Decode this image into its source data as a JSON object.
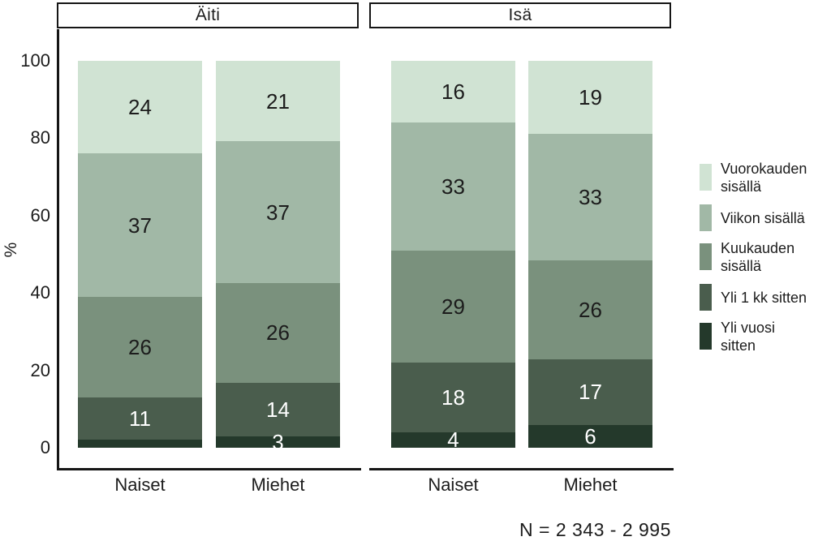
{
  "chart_data": {
    "type": "bar",
    "stacked": true,
    "orientation": "vertical",
    "unit": "%",
    "ylabel": "%",
    "ylim": [
      0,
      100
    ],
    "yticks": [
      0,
      20,
      40,
      60,
      80,
      100
    ],
    "grid": false,
    "legend_position": "right",
    "series": [
      {
        "name": "Vuorokauden sisällä",
        "color": "#d0e3d3",
        "label_color": "#1c1c1c",
        "legend_lines": [
          "Vuorokauden",
          "sisällä"
        ]
      },
      {
        "name": "Viikon sisällä",
        "color": "#a1b8a6",
        "label_color": "#1c1c1c",
        "legend_lines": [
          "Viikon sisällä"
        ]
      },
      {
        "name": "Kuukauden sisällä",
        "color": "#7a917d",
        "label_color": "#1c1c1c",
        "legend_lines": [
          "Kuukauden",
          "sisällä"
        ]
      },
      {
        "name": "Yli 1 kk sitten",
        "color": "#4a5d4d",
        "label_color": "#ffffff",
        "legend_lines": [
          "Yli 1 kk sitten"
        ]
      },
      {
        "name": "Yli vuosi sitten",
        "color": "#24392b",
        "label_color": "#ffffff",
        "legend_lines": [
          "Yli vuosi",
          "sitten"
        ]
      }
    ],
    "facets": [
      {
        "label": "Äiti",
        "bars": [
          {
            "category": "Naiset",
            "values": [
              24,
              37,
              26,
              11,
              2
            ],
            "shown_labels": [
              "24",
              "37",
              "26",
              "11",
              ""
            ]
          },
          {
            "category": "Miehet",
            "values": [
              21,
              37,
              26,
              14,
              3
            ],
            "shown_labels": [
              "21",
              "37",
              "26",
              "14",
              "3"
            ]
          }
        ]
      },
      {
        "label": "Isä",
        "bars": [
          {
            "category": "Naiset",
            "values": [
              16,
              33,
              29,
              18,
              4
            ],
            "shown_labels": [
              "16",
              "33",
              "29",
              "18",
              "4"
            ]
          },
          {
            "category": "Miehet",
            "values": [
              19,
              33,
              26,
              17,
              6
            ],
            "shown_labels": [
              "19",
              "33",
              "26",
              "17",
              "6"
            ]
          }
        ]
      }
    ],
    "caption": "N = 2 343 - 2 995"
  }
}
